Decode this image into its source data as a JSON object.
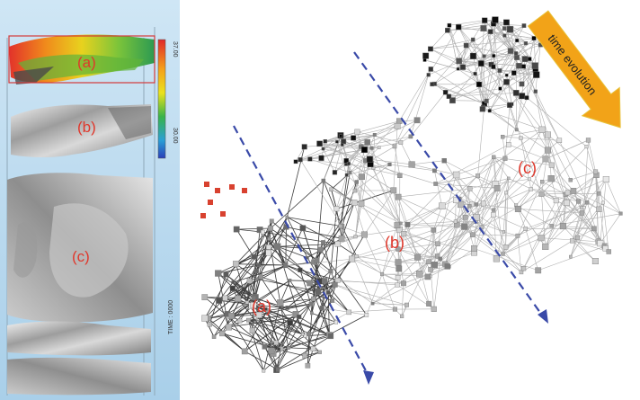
{
  "volume_view": {
    "labels": {
      "a": "(a)",
      "b": "(b)",
      "c": "(c)"
    },
    "colorbar": {
      "max_label": "37.00",
      "min_label": "30.00"
    },
    "time_readout": "TIME : 0000"
  },
  "network_view": {
    "labels": {
      "a": "(a)",
      "b": "(b)",
      "c": "(c)"
    },
    "time_arrow_label": "time evolution"
  },
  "colors": {
    "label_red": "#e0382c",
    "sky_blue": "#b8d8ee",
    "dashed_arrow": "#3a4aa8",
    "arrow_orange": "#f2a318",
    "surface_gray": "#b9b9b9"
  }
}
